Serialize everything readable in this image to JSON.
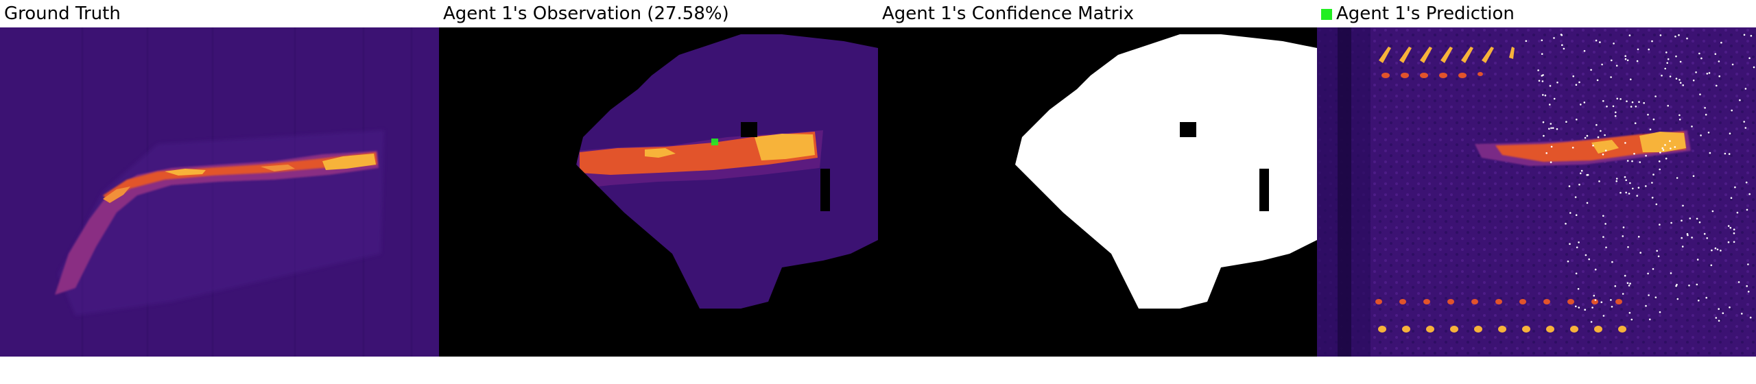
{
  "panels": [
    {
      "title": "Ground Truth"
    },
    {
      "title": "Agent 1's Observation (27.58%)"
    },
    {
      "title": "Agent 1's Confidence Matrix"
    },
    {
      "title": "Agent 1's Prediction"
    }
  ],
  "colors": {
    "background": "#3c1273",
    "deep": "#2a0c5e",
    "mid": "#7a2a86",
    "hot": "#e2542b",
    "bright": "#f7b33a",
    "mask": "#000000",
    "confidence": "#ffffff",
    "legend_marker": "#22ee22"
  }
}
